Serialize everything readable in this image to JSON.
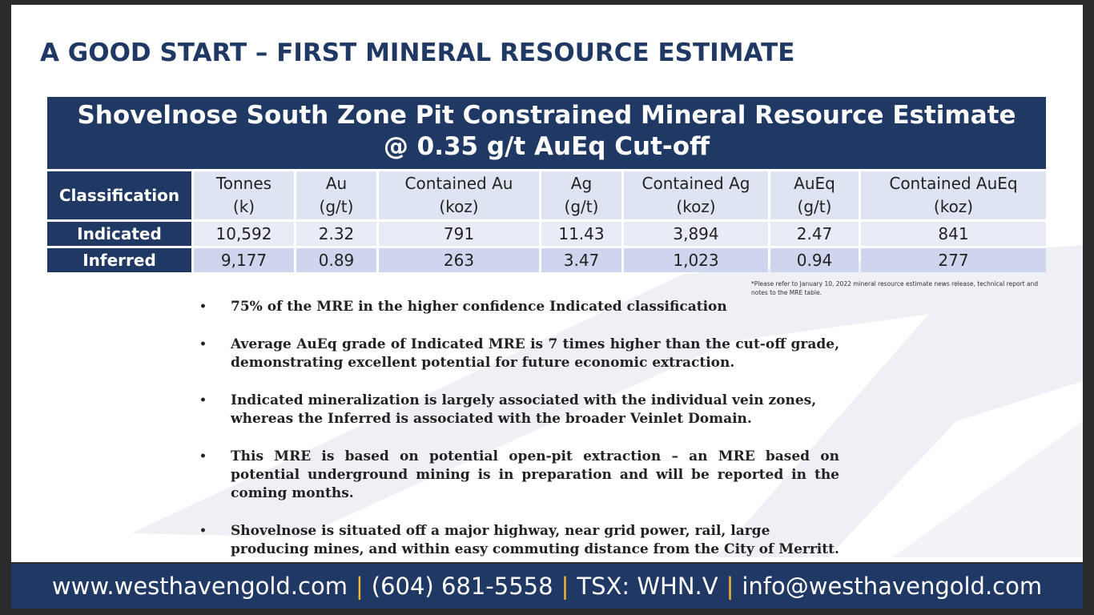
{
  "slide": {
    "title": "A GOOD START – FIRST MINERAL RESOURCE ESTIMATE"
  },
  "table": {
    "header_line1": "Shovelnose South Zone Pit Constrained Mineral Resource Estimate",
    "header_line2": "@ 0.35 g/t AuEq Cut-off",
    "columns": [
      {
        "l1": "Classification",
        "l2": ""
      },
      {
        "l1": "Tonnes",
        "l2": "(k)"
      },
      {
        "l1": "Au",
        "l2": "(g/t)"
      },
      {
        "l1": "Contained Au",
        "l2": "(koz)"
      },
      {
        "l1": "Ag",
        "l2": "(g/t)"
      },
      {
        "l1": "Contained Ag",
        "l2": "(koz)"
      },
      {
        "l1": "AuEq",
        "l2": "(g/t)"
      },
      {
        "l1": "Contained AuEq",
        "l2": "(koz)"
      }
    ],
    "rows": [
      [
        "Indicated",
        "10,592",
        "2.32",
        "791",
        "11.43",
        "3,894",
        "2.47",
        "841"
      ],
      [
        "Inferred",
        "9,177",
        "0.89",
        "263",
        "3.47",
        "1,023",
        "0.94",
        "277"
      ]
    ]
  },
  "footnote": "*Please refer to January 10, 2022 mineral resource estimate news release, technical report and notes to the MRE table.",
  "bullets": [
    "75% of the MRE in the higher confidence Indicated classification",
    "Average AuEq grade of Indicated MRE is 7 times higher than the cut-off grade, demonstrating excellent potential for future economic extraction.",
    "Indicated mineralization is largely associated with the individual vein zones, whereas the Inferred is associated with the broader Veinlet Domain.",
    "This MRE is based on potential open-pit extraction – an MRE based on potential underground mining is in preparation and will be reported in the coming months.",
    "Shovelnose is situated off a major highway, near grid power, rail, large producing mines, and within easy commuting distance from the City of Merritt."
  ],
  "footer": {
    "website": "www.westhavengold.com",
    "phone": "(604) 681-5558",
    "ticker": "TSX: WHN.V",
    "email": "info@westhavengold.com",
    "separator": "|"
  },
  "colors": {
    "navy": "#1f3864",
    "accent": "#f2b632",
    "row_light": "#e9ecf6",
    "row_dark": "#cfd5ee"
  }
}
